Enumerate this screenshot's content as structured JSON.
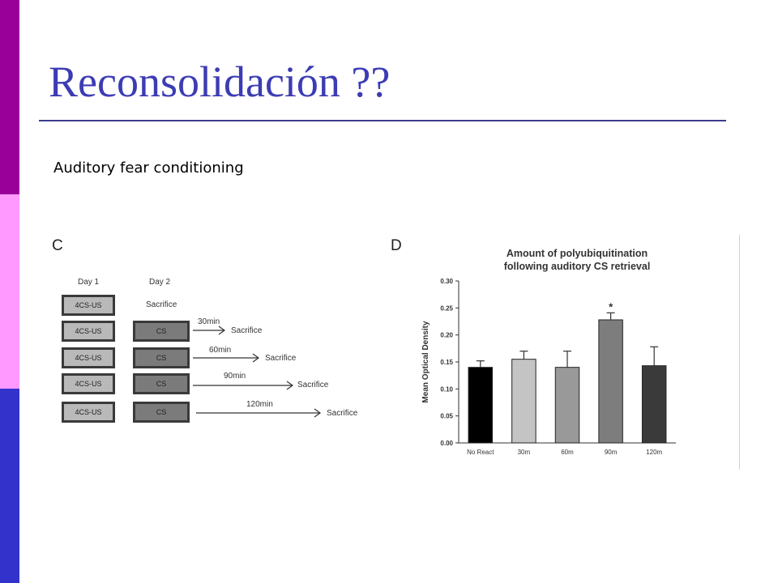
{
  "slide": {
    "title": "Reconsolidación ??",
    "subtitle": "Auditory fear conditioning"
  },
  "panel_c": {
    "letter": "C",
    "day1_label": "Day 1",
    "day2_label": "Day 2",
    "rows": [
      {
        "day1": "4CS-US",
        "day2": "Sacrifice",
        "delay": "",
        "end": ""
      },
      {
        "day1": "4CS-US",
        "day2": "CS",
        "delay": "30min",
        "end": "Sacrifice"
      },
      {
        "day1": "4CS-US",
        "day2": "CS",
        "delay": "60min",
        "end": "Sacrifice"
      },
      {
        "day1": "4CS-US",
        "day2": "CS",
        "delay": "90min",
        "end": "Sacrifice"
      },
      {
        "day1": "4CS-US",
        "day2": "CS",
        "delay": "120min",
        "end": "Sacrifice"
      }
    ]
  },
  "chart_data": {
    "type": "bar",
    "panel_letter": "D",
    "title": "Amount of polyubiquitination following auditory CS retrieval",
    "ylabel": "Mean Optical Density",
    "xlabel": "",
    "categories": [
      "No React",
      "30m",
      "60m",
      "90m",
      "120m"
    ],
    "values": [
      0.14,
      0.155,
      0.14,
      0.228,
      0.143
    ],
    "errors": [
      0.012,
      0.015,
      0.03,
      0.013,
      0.035
    ],
    "colors": [
      "#000000",
      "#c4c4c4",
      "#999999",
      "#7d7d7d",
      "#3a3a3a"
    ],
    "significance": [
      "",
      "",
      "",
      "*",
      ""
    ],
    "ylim": [
      0,
      0.3
    ],
    "yticks": [
      "0.00",
      "0.05",
      "0.10",
      "0.15",
      "0.20",
      "0.25",
      "0.30"
    ],
    "grid": false
  }
}
